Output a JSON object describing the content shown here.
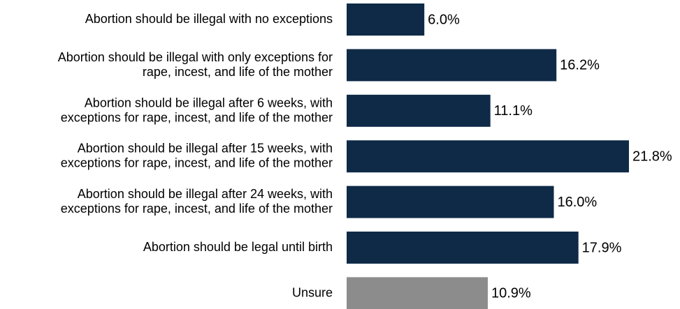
{
  "chart_data": {
    "type": "bar",
    "orientation": "horizontal",
    "categories": [
      "Abortion should be illegal with no exceptions",
      "Abortion should be illegal with only exceptions for\nrape, incest, and life of the mother",
      "Abortion should be illegal after 6 weeks, with\nexceptions for rape, incest, and life of the mother",
      "Abortion should be illegal after 15 weeks, with\nexceptions for rape, incest, and life of the mother",
      "Abortion should be illegal after 24 weeks, with\nexceptions for rape, incest, and life of the mother",
      "Abortion should be legal until birth",
      "Unsure"
    ],
    "values": [
      6.0,
      16.2,
      11.1,
      21.8,
      16.0,
      17.9,
      10.9
    ],
    "value_labels": [
      "6.0%",
      "16.2%",
      "11.1%",
      "21.8%",
      "16.0%",
      "17.9%",
      "10.9%"
    ],
    "colors": [
      "#0e2a47",
      "#0e2a47",
      "#0e2a47",
      "#0e2a47",
      "#0e2a47",
      "#0e2a47",
      "#8c8c8c"
    ]
  }
}
